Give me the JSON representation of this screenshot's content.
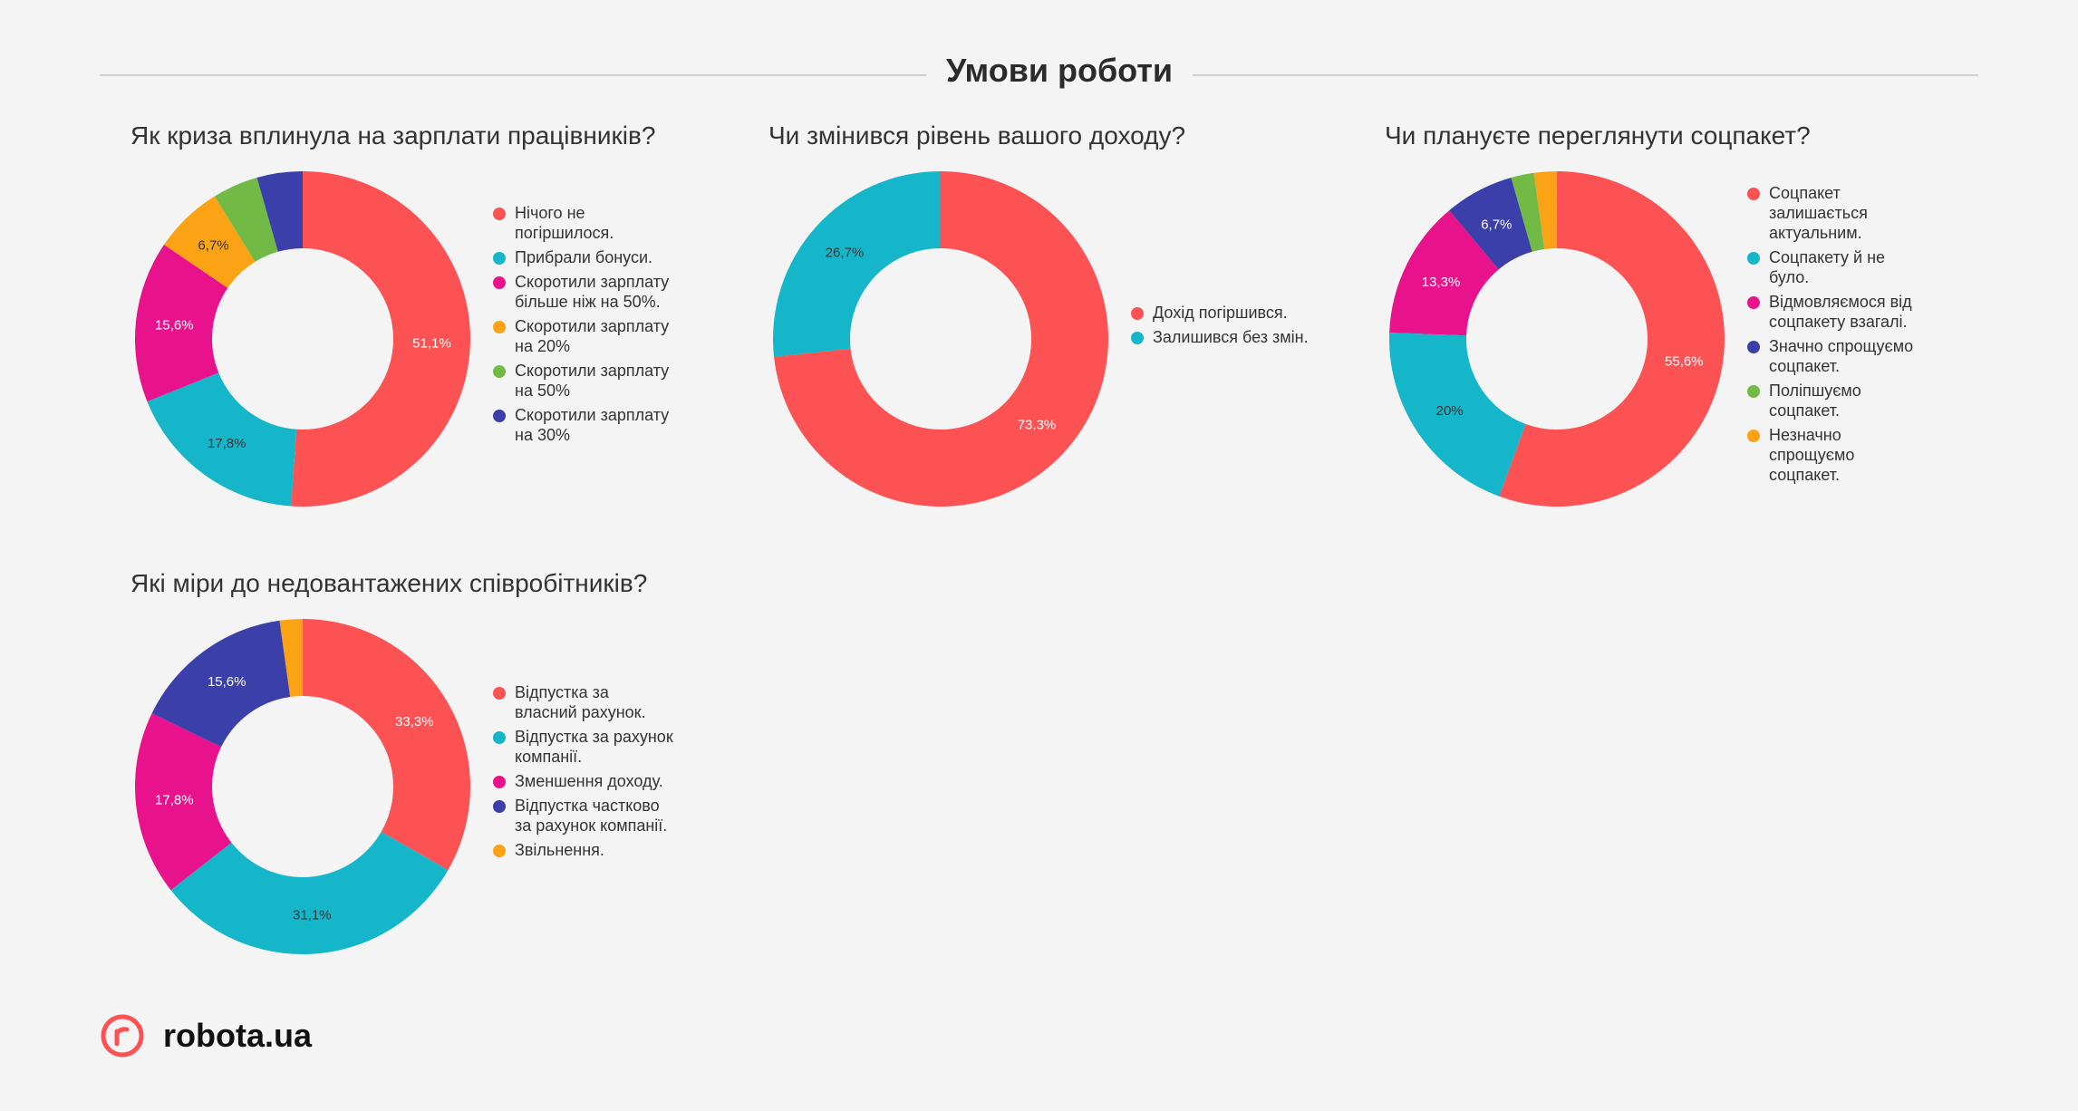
{
  "header": {
    "title": "Умови роботи"
  },
  "chart_data": [
    {
      "type": "pie",
      "title": "Як криза вплинула на зарплати працівників?",
      "series": [
        {
          "name": "Нічого не погіршилося.",
          "value": 51.1,
          "label": "51,1%",
          "color": "#fc5254"
        },
        {
          "name": "Прибрали бонуси.",
          "value": 17.8,
          "label": "17,8%",
          "color": "#15b6c9"
        },
        {
          "name": "Скоротили зарплату більше ніж на 50%.",
          "value": 15.6,
          "label": "15,6%",
          "color": "#e8128c"
        },
        {
          "name": "Скоротили зарплату на 20%",
          "value": 6.7,
          "label": "6,7%",
          "color": "#fba314"
        },
        {
          "name": "Скоротили зарплату на 50%",
          "value": 4.4,
          "label": "",
          "color": "#72ba46"
        },
        {
          "name": "Скоротили зарплату на 30%",
          "value": 4.4,
          "label": "",
          "color": "#3b3fa9"
        }
      ],
      "legend": "right"
    },
    {
      "type": "pie",
      "title": "Чи змінився рівень вашого доходу?",
      "series": [
        {
          "name": "Дохід погіршився.",
          "value": 73.3,
          "label": "73,3%",
          "color": "#fc5254"
        },
        {
          "name": "Залишився без змін.",
          "value": 26.7,
          "label": "26,7%",
          "color": "#15b6c9"
        }
      ],
      "legend": "right"
    },
    {
      "type": "pie",
      "title": "Чи плануєте переглянути соцпакет?",
      "series": [
        {
          "name": "Соцпакет залишається актуальним.",
          "value": 55.6,
          "label": "55,6%",
          "color": "#fc5254"
        },
        {
          "name": "Соцпакету й не було.",
          "value": 20,
          "label": "20%",
          "color": "#15b6c9"
        },
        {
          "name": "Відмовляємося від соцпакету взагалі.",
          "value": 13.3,
          "label": "13,3%",
          "color": "#e8128c"
        },
        {
          "name": "Значно спрощуємо соцпакет.",
          "value": 6.7,
          "label": "6,7%",
          "color": "#3b3fa9"
        },
        {
          "name": "Поліпшуємо соцпакет.",
          "value": 2.2,
          "label": "",
          "color": "#72ba46"
        },
        {
          "name": "Незначно спрощуємо соцпакет.",
          "value": 2.2,
          "label": "",
          "color": "#fba314"
        }
      ],
      "legend": "right"
    },
    {
      "type": "pie",
      "title": "Які міри до недовантажених співробітників?",
      "series": [
        {
          "name": "Відпустка за власний рахунок.",
          "value": 33.3,
          "label": "33,3%",
          "color": "#fc5254"
        },
        {
          "name": "Відпустка за рахунок компанії.",
          "value": 31.1,
          "label": "31,1%",
          "color": "#15b6c9"
        },
        {
          "name": "Зменшення доходу.",
          "value": 17.8,
          "label": "17,8%",
          "color": "#e8128c"
        },
        {
          "name": "Відпустка частково за рахунок компанії.",
          "value": 15.6,
          "label": "15,6%",
          "color": "#3b3fa9"
        },
        {
          "name": "Звільнення.",
          "value": 2.2,
          "label": "",
          "color": "#fba314"
        }
      ],
      "legend": "right"
    }
  ],
  "brand": {
    "name": "robota.ua",
    "color": "#fc5254"
  }
}
